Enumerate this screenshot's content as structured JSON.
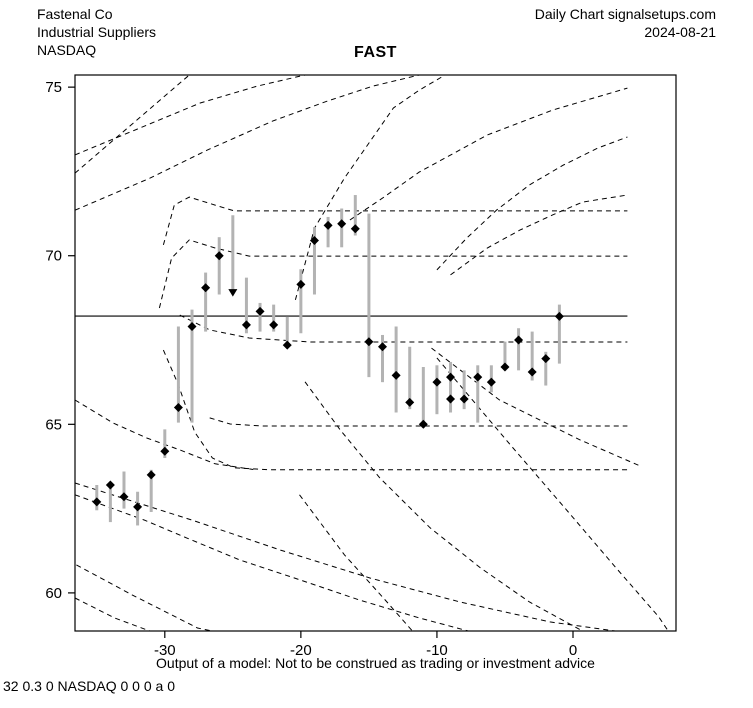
{
  "header": {
    "company": "Fastenal Co",
    "industry": "Industrial Suppliers",
    "exchange": "NASDAQ",
    "chart_type": "Daily Chart signalsetups.com",
    "date": "2024-08-21"
  },
  "title": "FAST",
  "footer": {
    "disclaimer": "Output of a model: Not to be construed as trading or investment advice",
    "model_code": "32 0.3 0 NASDAQ 0 0 0 a 0"
  },
  "chart_data": {
    "type": "ohlc-bar-with-model-curves",
    "title": "FAST",
    "xlabel": "",
    "ylabel": "",
    "grid": false,
    "x_ticks": [
      -30,
      -20,
      -10,
      0
    ],
    "y_ticks": [
      75,
      70,
      65,
      60
    ],
    "x_range": [
      -36.6,
      7.57
    ],
    "y_range": [
      58.87,
      75.36
    ],
    "colors": {
      "bar": "#b3b3b3",
      "marker": "#000000",
      "curve": "#000000",
      "axis": "#000000"
    },
    "solid_line": {
      "y": 68.21,
      "x_start": -36.6,
      "x_end": 4.0
    },
    "bars": [
      {
        "t": -35,
        "high": 63.2,
        "low": 62.45,
        "marker": 62.7
      },
      {
        "t": -34,
        "high": 63.25,
        "low": 62.1,
        "marker": 63.2
      },
      {
        "t": -33,
        "high": 63.6,
        "low": 62.5,
        "marker": 62.85
      },
      {
        "t": -32,
        "high": 63.0,
        "low": 62.0,
        "marker": 62.55
      },
      {
        "t": -31,
        "high": 63.65,
        "low": 62.4,
        "marker": 63.5
      },
      {
        "t": -30,
        "high": 64.85,
        "low": 64.0,
        "marker": 64.2
      },
      {
        "t": -29,
        "high": 67.9,
        "low": 65.05,
        "marker": 65.5
      },
      {
        "t": -28,
        "high": 68.4,
        "low": 65.05,
        "marker": 67.9
      },
      {
        "t": -27,
        "high": 69.5,
        "low": 67.75,
        "marker": 69.05
      },
      {
        "t": -26,
        "high": 70.55,
        "low": 68.85,
        "marker": 70.0
      },
      {
        "t": -25,
        "high": 71.2,
        "low": 68.9,
        "marker": 68.92,
        "shape": "down-arrow"
      },
      {
        "t": -24,
        "high": 69.35,
        "low": 67.7,
        "marker": 67.95
      },
      {
        "t": -23,
        "high": 68.6,
        "low": 67.75,
        "marker": 68.35
      },
      {
        "t": -22,
        "high": 68.55,
        "low": 67.75,
        "marker": 67.95
      },
      {
        "t": -21,
        "high": 68.2,
        "low": 67.3,
        "marker": 67.35
      },
      {
        "t": -20,
        "high": 69.6,
        "low": 67.7,
        "marker": 69.15
      },
      {
        "t": -19,
        "high": 70.85,
        "low": 68.85,
        "marker": 70.45
      },
      {
        "t": -18,
        "high": 71.15,
        "low": 70.25,
        "marker": 70.9
      },
      {
        "t": -17,
        "high": 71.4,
        "low": 70.25,
        "marker": 70.95
      },
      {
        "t": -16,
        "high": 71.8,
        "low": 70.6,
        "marker": 70.8
      },
      {
        "t": -15,
        "high": 71.25,
        "low": 66.4,
        "marker": 67.45
      },
      {
        "t": -14,
        "high": 67.65,
        "low": 66.25,
        "marker": 67.3
      },
      {
        "t": -13,
        "high": 67.9,
        "low": 65.35,
        "marker": 66.45
      },
      {
        "t": -12,
        "high": 67.3,
        "low": 65.45,
        "marker": 65.65
      },
      {
        "t": -11,
        "high": 66.7,
        "low": 64.9,
        "marker": 65.0
      },
      {
        "t": -10,
        "high": 66.75,
        "low": 65.3,
        "marker": 66.25
      },
      {
        "t": -9,
        "high": 66.85,
        "low": 65.35,
        "marker": 66.4,
        "marker2": 65.75
      },
      {
        "t": -8,
        "high": 66.6,
        "low": 65.45,
        "marker": 65.75
      },
      {
        "t": -7,
        "high": 66.75,
        "low": 65.05,
        "marker": 66.4
      },
      {
        "t": -6,
        "high": 66.75,
        "low": 65.95,
        "marker": 66.25
      },
      {
        "t": -5,
        "high": 67.45,
        "low": 66.6,
        "marker": 66.7
      },
      {
        "t": -4,
        "high": 67.85,
        "low": 66.6,
        "marker": 67.5
      },
      {
        "t": -3,
        "high": 67.75,
        "low": 66.3,
        "marker": 66.55
      },
      {
        "t": -2,
        "high": 67.15,
        "low": 66.15,
        "marker": 66.95
      },
      {
        "t": -1,
        "high": 68.55,
        "low": 66.8,
        "marker": 68.2
      }
    ],
    "curves": [
      {
        "name": "rise-steep-left",
        "points": [
          [
            -36.6,
            72.45
          ],
          [
            -28.2,
            75.36
          ]
        ]
      },
      {
        "name": "rise-upper",
        "points": [
          [
            -36.6,
            72.99
          ],
          [
            -27.4,
            74.53
          ],
          [
            -23.2,
            75.03
          ],
          [
            -19.7,
            75.36
          ]
        ]
      },
      {
        "name": "rise-long",
        "points": [
          [
            -36.6,
            71.35
          ],
          [
            -31.1,
            72.3
          ],
          [
            -26.9,
            73.13
          ],
          [
            -22.1,
            73.99
          ],
          [
            -18.1,
            74.58
          ],
          [
            -14.7,
            75.03
          ],
          [
            -11.3,
            75.36
          ]
        ]
      },
      {
        "name": "rise-steep-mid",
        "points": [
          [
            -20.4,
            68.69
          ],
          [
            -19.0,
            70.82
          ],
          [
            -16.8,
            72.3
          ],
          [
            -15.1,
            73.28
          ],
          [
            -13.2,
            74.38
          ],
          [
            -11.3,
            74.91
          ],
          [
            -9.4,
            75.36
          ]
        ]
      },
      {
        "name": "rise-right-1",
        "points": [
          [
            -16.4,
            71.06
          ],
          [
            -14.0,
            71.71
          ],
          [
            -11.3,
            72.48
          ],
          [
            -6.3,
            73.58
          ],
          [
            -1.5,
            74.32
          ],
          [
            4.0,
            74.97
          ]
        ]
      },
      {
        "name": "rise-right-2",
        "points": [
          [
            -10.0,
            69.58
          ],
          [
            -7.8,
            70.53
          ],
          [
            -5.6,
            71.36
          ],
          [
            -3.2,
            72.1
          ],
          [
            -0.7,
            72.69
          ],
          [
            1.8,
            73.19
          ],
          [
            4.0,
            73.52
          ]
        ]
      },
      {
        "name": "rise-right-3",
        "points": [
          [
            -9.0,
            69.43
          ],
          [
            -6.3,
            70.23
          ],
          [
            -3.9,
            70.76
          ],
          [
            -1.5,
            71.21
          ],
          [
            0.7,
            71.59
          ],
          [
            4.0,
            71.8
          ]
        ]
      },
      {
        "name": "hump-level-71.3",
        "points": [
          [
            -30.1,
            70.32
          ],
          [
            -29.3,
            71.5
          ],
          [
            -28.2,
            71.74
          ],
          [
            -26.3,
            71.5
          ],
          [
            -24.9,
            71.33
          ],
          [
            4.0,
            71.33
          ]
        ]
      },
      {
        "name": "hump-level-70.0",
        "points": [
          [
            -30.4,
            68.45
          ],
          [
            -29.5,
            69.93
          ],
          [
            -28.2,
            70.47
          ],
          [
            -26.3,
            70.23
          ],
          [
            -23.8,
            69.99
          ],
          [
            4.0,
            69.99
          ]
        ]
      },
      {
        "name": "settle-level-67.45",
        "points": [
          [
            -28.9,
            68.24
          ],
          [
            -26.7,
            67.8
          ],
          [
            -23.8,
            67.56
          ],
          [
            -19.3,
            67.44
          ],
          [
            4.0,
            67.44
          ]
        ]
      },
      {
        "name": "settle-level-65.0",
        "points": [
          [
            -26.7,
            65.19
          ],
          [
            -25.2,
            65.01
          ],
          [
            -22.8,
            64.95
          ],
          [
            4.0,
            64.95
          ]
        ]
      },
      {
        "name": "drop-level-63.65",
        "points": [
          [
            -30.1,
            67.2
          ],
          [
            -29.0,
            66.17
          ],
          [
            -27.8,
            64.77
          ],
          [
            -26.5,
            64.0
          ],
          [
            -24.9,
            63.71
          ],
          [
            -22.3,
            63.65
          ],
          [
            4.0,
            63.65
          ]
        ]
      },
      {
        "name": "fall-left-gentle",
        "points": [
          [
            -36.6,
            65.72
          ],
          [
            -33.8,
            65.04
          ],
          [
            -31.3,
            64.59
          ],
          [
            -28.9,
            64.24
          ],
          [
            -26.3,
            63.83
          ],
          [
            -23.5,
            63.66
          ]
        ]
      },
      {
        "name": "fall-mid-1",
        "points": [
          [
            -36.6,
            63.26
          ],
          [
            -28.0,
            62.16
          ],
          [
            -21.5,
            61.27
          ],
          [
            -14.9,
            60.44
          ],
          [
            -8.3,
            59.73
          ],
          [
            -1.7,
            59.14
          ],
          [
            3.1,
            58.87
          ]
        ]
      },
      {
        "name": "fall-mid-2",
        "points": [
          [
            -36.6,
            62.91
          ],
          [
            -31.5,
            62.16
          ],
          [
            -28.4,
            61.63
          ],
          [
            -24.5,
            60.98
          ],
          [
            -20.1,
            60.39
          ],
          [
            -15.7,
            59.79
          ],
          [
            -11.3,
            59.26
          ],
          [
            -7.7,
            58.87
          ]
        ]
      },
      {
        "name": "fall-steep-mid",
        "points": [
          [
            -19.7,
            66.26
          ],
          [
            -17.1,
            64.83
          ],
          [
            -14.2,
            63.41
          ],
          [
            -10.5,
            61.93
          ],
          [
            -6.8,
            60.74
          ],
          [
            -3.2,
            59.73
          ],
          [
            0.7,
            58.87
          ]
        ]
      },
      {
        "name": "fall-steep-short",
        "points": [
          [
            -20.1,
            62.91
          ],
          [
            -16.8,
            61.13
          ],
          [
            -13.8,
            59.79
          ],
          [
            -11.8,
            58.87
          ]
        ]
      },
      {
        "name": "fall-bottom-left-1",
        "points": [
          [
            -36.5,
            60.83
          ],
          [
            -32.4,
            59.94
          ],
          [
            -27.6,
            58.96
          ],
          [
            -26.5,
            58.87
          ]
        ]
      },
      {
        "name": "fall-bottom-left-2",
        "points": [
          [
            -36.6,
            59.85
          ],
          [
            -33.7,
            59.26
          ],
          [
            -31.1,
            58.87
          ]
        ]
      },
      {
        "name": "fall-right-gentle",
        "points": [
          [
            -10.4,
            67.26
          ],
          [
            -5.4,
            65.72
          ],
          [
            0.5,
            64.54
          ],
          [
            4.9,
            63.77
          ]
        ]
      },
      {
        "name": "fall-right-steep",
        "points": [
          [
            -10.0,
            66.97
          ],
          [
            -4.6,
            64.39
          ],
          [
            -0.6,
            62.52
          ],
          [
            3.1,
            60.77
          ],
          [
            6.3,
            59.29
          ],
          [
            7.0,
            58.87
          ]
        ]
      }
    ]
  }
}
